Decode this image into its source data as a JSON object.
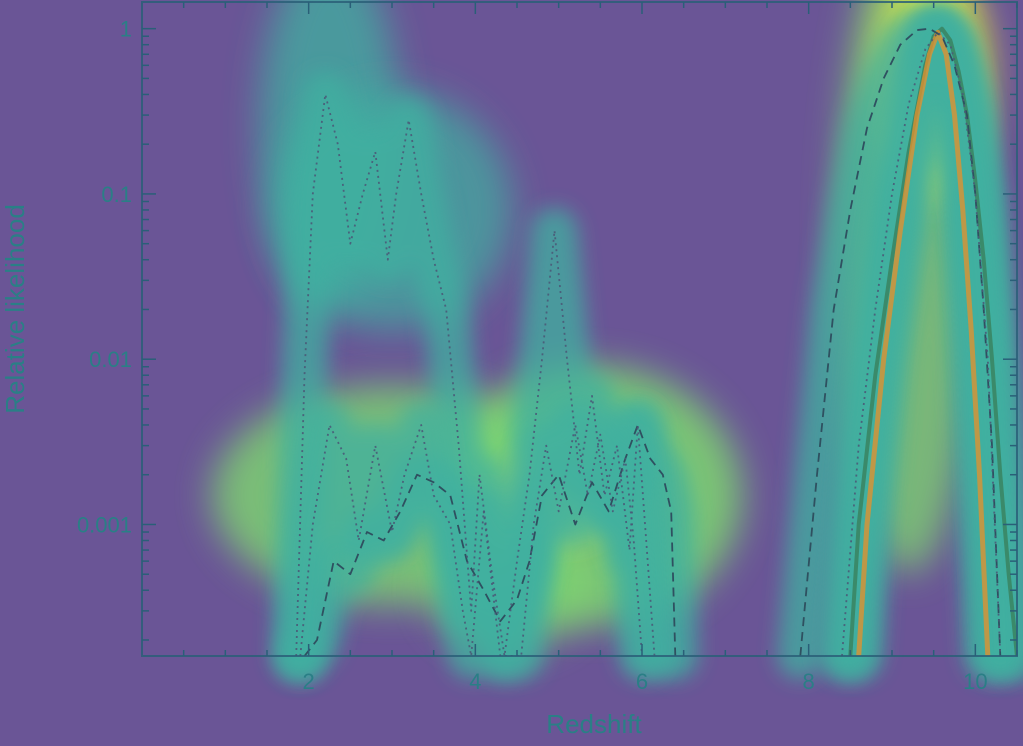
{
  "colors": {
    "background": "#6a5596",
    "axis": "#2a5f78",
    "label": "#2a7f86",
    "curve_solid": "#3a8a6a",
    "curve_dashed": "#2f5060",
    "curve_dotted": "#4a5a78",
    "curve_orange": "#e8902a",
    "heat_low": "#3fb0a0",
    "heat_mid": "#7fd870",
    "heat_high": "#f4f03a"
  },
  "chart_data": {
    "type": "line",
    "title": "",
    "xlabel": "Redshift",
    "ylabel": "Relative likelihood",
    "xlim": [
      0,
      10.5
    ],
    "ylim": [
      0.00016,
      1.45
    ],
    "yscale": "log",
    "x_ticks": [
      2,
      4,
      6,
      8,
      10
    ],
    "x_tick_labels": [
      "2",
      "4",
      "6",
      "8",
      "10"
    ],
    "y_ticks": [
      0.001,
      0.01,
      0.1,
      1
    ],
    "y_tick_labels": [
      "0.001",
      "0.01",
      "0.1",
      "1"
    ],
    "grid": false,
    "legend": "none",
    "overlay": "saliency heatmap",
    "series": [
      {
        "style": "solid",
        "x": [
          8.5,
          8.6,
          8.8,
          9.0,
          9.2,
          9.4,
          9.5,
          9.6,
          9.7,
          9.8,
          9.9,
          10.0,
          10.1,
          10.2,
          10.3,
          10.4,
          10.5
        ],
        "y": [
          0.00016,
          0.001,
          0.008,
          0.04,
          0.18,
          0.6,
          0.9,
          1.0,
          0.85,
          0.55,
          0.3,
          0.12,
          0.04,
          0.01,
          0.002,
          0.0005,
          0.00016
        ]
      },
      {
        "style": "orange",
        "x": [
          8.6,
          8.7,
          8.9,
          9.1,
          9.3,
          9.45,
          9.55,
          9.65,
          9.75,
          9.85,
          9.95,
          10.05,
          10.15
        ],
        "y": [
          0.00016,
          0.001,
          0.01,
          0.06,
          0.3,
          0.7,
          0.95,
          0.7,
          0.3,
          0.08,
          0.015,
          0.002,
          0.00016
        ]
      },
      {
        "style": "dashed",
        "x": [
          1.95,
          2.1,
          2.3,
          2.5,
          2.7,
          2.9,
          3.1,
          3.3,
          3.5,
          3.7,
          3.9,
          4.1,
          4.3,
          4.5,
          4.65,
          4.8,
          5.0,
          5.2,
          5.4,
          5.6,
          5.8,
          5.95,
          6.1,
          6.25,
          6.35,
          6.4
        ],
        "y": [
          0.00016,
          0.0002,
          0.0006,
          0.0005,
          0.0009,
          0.0008,
          0.0012,
          0.002,
          0.0018,
          0.0015,
          0.0006,
          0.0004,
          0.00026,
          0.00035,
          0.0006,
          0.0015,
          0.002,
          0.001,
          0.0018,
          0.0012,
          0.0025,
          0.004,
          0.0025,
          0.002,
          0.0012,
          0.00016
        ],
        "x2": [
          7.9,
          8.1,
          8.3,
          8.5,
          8.7,
          8.9,
          9.1,
          9.3,
          9.45,
          9.6,
          9.75,
          9.9,
          10.0,
          10.1,
          10.2,
          10.3
        ],
        "y2": [
          0.00016,
          0.002,
          0.02,
          0.08,
          0.25,
          0.5,
          0.8,
          0.98,
          1.0,
          0.9,
          0.6,
          0.3,
          0.1,
          0.02,
          0.003,
          0.00016
        ]
      },
      {
        "style": "dotted",
        "x": [
          1.85,
          1.95,
          2.05,
          2.2,
          2.35,
          2.5,
          2.65,
          2.8,
          2.95,
          3.05,
          3.2,
          3.35,
          3.5,
          3.65,
          3.8,
          3.95,
          4.05,
          4.2,
          4.35,
          4.5,
          4.65,
          4.8,
          4.95,
          5.1,
          5.25,
          5.4,
          5.55,
          5.7,
          5.85,
          5.95,
          6.05,
          6.15
        ],
        "y": [
          0.00016,
          0.008,
          0.1,
          0.4,
          0.2,
          0.05,
          0.1,
          0.18,
          0.04,
          0.1,
          0.28,
          0.1,
          0.04,
          0.02,
          0.003,
          0.0003,
          0.002,
          0.0005,
          0.00016,
          0.0006,
          0.002,
          0.01,
          0.06,
          0.01,
          0.002,
          0.006,
          0.0015,
          0.003,
          0.0007,
          0.004,
          0.0008,
          0.00016
        ]
      },
      {
        "style": "dotted",
        "x": [
          1.9,
          2.05,
          2.25,
          2.45,
          2.6,
          2.8,
          3.0,
          3.15,
          3.35,
          3.5,
          3.7,
          3.85,
          3.95,
          4.1,
          4.3,
          4.55,
          4.7,
          4.85,
          5.0,
          5.2,
          5.35,
          5.5,
          5.65,
          5.8,
          5.9,
          6.0
        ],
        "y": [
          0.00016,
          0.001,
          0.004,
          0.0025,
          0.0008,
          0.003,
          0.0009,
          0.002,
          0.004,
          0.0015,
          0.001,
          0.0003,
          0.00016,
          0.0012,
          0.00016,
          0.00016,
          0.001,
          0.003,
          0.0012,
          0.004,
          0.0015,
          0.0035,
          0.0012,
          0.0025,
          0.0008,
          0.00016
        ]
      },
      {
        "style": "dotted",
        "x": [
          8.4,
          8.6,
          8.8,
          9.0,
          9.2,
          9.4,
          9.55,
          9.7,
          9.85,
          10.0,
          10.15,
          10.3
        ],
        "y": [
          0.00016,
          0.003,
          0.02,
          0.1,
          0.35,
          0.75,
          0.95,
          0.8,
          0.4,
          0.1,
          0.01,
          0.00016
        ]
      }
    ]
  }
}
